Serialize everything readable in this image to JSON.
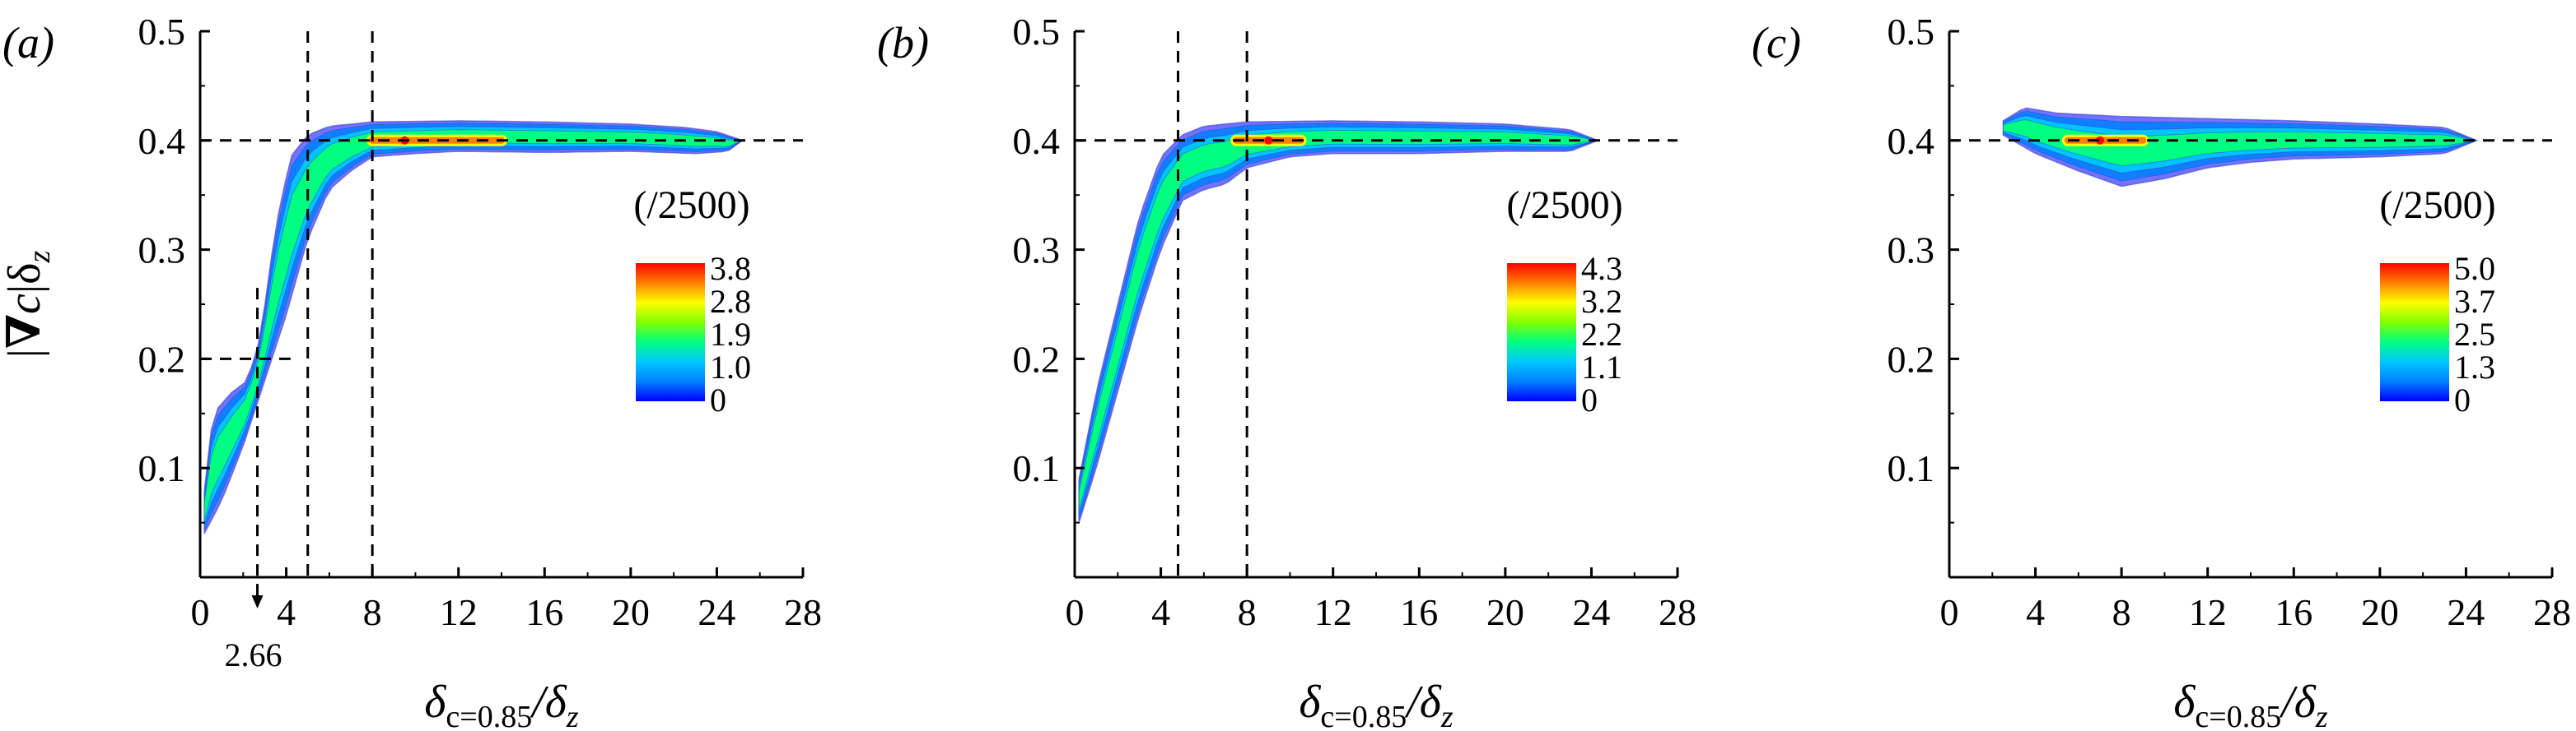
{
  "colors": {
    "colormap": [
      "#0000ff",
      "#0080ff",
      "#00c8ff",
      "#00ff80",
      "#80ff00",
      "#ffff00",
      "#ff8000",
      "#ff0000"
    ],
    "contour_line": "#3344cc",
    "axes": "#000000",
    "reference_lines": "#000000"
  },
  "chart_data": [
    {
      "type": "heatmap",
      "panel_label": "(a)",
      "ylabel": "|∇c|δz",
      "xlabel": "δc=0.85/δz",
      "xlim": [
        0,
        28
      ],
      "ylim": [
        0,
        0.5
      ],
      "x_ticks": [
        "0",
        "4",
        "8",
        "12",
        "16",
        "20",
        "24",
        "28"
      ],
      "y_ticks": [
        "0.1",
        "0.2",
        "0.3",
        "0.4",
        "0.5"
      ],
      "colorbar": {
        "title": "(/2500)",
        "ticks": [
          "3.8",
          "2.8",
          "1.9",
          "1.0",
          "0"
        ],
        "max": 3.8
      },
      "reference_lines": {
        "horizontal": [
          0.4,
          0.2
        ],
        "vertical": [
          2.66,
          5.0,
          8.0
        ]
      },
      "annotation": {
        "text": "2.66",
        "x": 2.66
      },
      "band": {
        "upper": [
          [
            0.2,
            0.08
          ],
          [
            0.6,
            0.15
          ],
          [
            1.5,
            0.17
          ],
          [
            2.2,
            0.18
          ],
          [
            2.8,
            0.22
          ],
          [
            3.5,
            0.32
          ],
          [
            4.2,
            0.385
          ],
          [
            5.0,
            0.405
          ],
          [
            6.0,
            0.413
          ],
          [
            8.0,
            0.417
          ],
          [
            12.0,
            0.418
          ],
          [
            16.0,
            0.417
          ],
          [
            20.0,
            0.415
          ],
          [
            22.5,
            0.412
          ],
          [
            24.0,
            0.408
          ],
          [
            25.2,
            0.4
          ]
        ],
        "lower": [
          [
            0.2,
            0.04
          ],
          [
            1.0,
            0.07
          ],
          [
            2.0,
            0.12
          ],
          [
            3.0,
            0.18
          ],
          [
            4.0,
            0.24
          ],
          [
            5.0,
            0.31
          ],
          [
            6.0,
            0.355
          ],
          [
            7.0,
            0.372
          ],
          [
            8.0,
            0.385
          ],
          [
            10.0,
            0.388
          ],
          [
            12.0,
            0.39
          ],
          [
            16.0,
            0.389
          ],
          [
            20.0,
            0.39
          ],
          [
            23.0,
            0.388
          ],
          [
            24.5,
            0.39
          ],
          [
            25.2,
            0.4
          ]
        ],
        "peak": [
          [
            8.0,
            0.4
          ],
          [
            9.5,
            0.4
          ],
          [
            12.0,
            0.4
          ],
          [
            14.0,
            0.4
          ]
        ]
      }
    },
    {
      "type": "heatmap",
      "panel_label": "(b)",
      "xlabel": "δc=0.85/δz",
      "xlim": [
        0,
        28
      ],
      "ylim": [
        0,
        0.5
      ],
      "x_ticks": [
        "0",
        "4",
        "8",
        "12",
        "16",
        "20",
        "24",
        "28"
      ],
      "y_ticks": [
        "0.1",
        "0.2",
        "0.3",
        "0.4",
        "0.5"
      ],
      "colorbar": {
        "title": "(/2500)",
        "ticks": [
          "4.3",
          "3.2",
          "2.2",
          "1.1",
          "0"
        ],
        "max": 4.3
      },
      "reference_lines": {
        "horizontal": [
          0.4
        ],
        "vertical": [
          4.8,
          8.0
        ]
      },
      "band": {
        "upper": [
          [
            0.2,
            0.09
          ],
          [
            1.0,
            0.17
          ],
          [
            2.0,
            0.25
          ],
          [
            3.0,
            0.33
          ],
          [
            4.0,
            0.385
          ],
          [
            5.0,
            0.405
          ],
          [
            6.0,
            0.413
          ],
          [
            8.0,
            0.417
          ],
          [
            12.0,
            0.418
          ],
          [
            16.0,
            0.417
          ],
          [
            20.0,
            0.415
          ],
          [
            23.0,
            0.41
          ],
          [
            24.3,
            0.4
          ]
        ],
        "lower": [
          [
            0.2,
            0.05
          ],
          [
            1.0,
            0.1
          ],
          [
            2.0,
            0.17
          ],
          [
            3.0,
            0.24
          ],
          [
            4.0,
            0.3
          ],
          [
            5.0,
            0.345
          ],
          [
            6.0,
            0.355
          ],
          [
            7.0,
            0.36
          ],
          [
            8.0,
            0.375
          ],
          [
            10.0,
            0.385
          ],
          [
            12.0,
            0.388
          ],
          [
            16.0,
            0.388
          ],
          [
            20.0,
            0.39
          ],
          [
            23.0,
            0.39
          ],
          [
            24.3,
            0.4
          ]
        ],
        "peak": [
          [
            7.5,
            0.4
          ],
          [
            9.0,
            0.4
          ],
          [
            10.5,
            0.4
          ]
        ]
      }
    },
    {
      "type": "heatmap",
      "panel_label": "(c)",
      "xlabel": "δc=0.85/δz",
      "xlim": [
        0,
        28
      ],
      "ylim": [
        0,
        0.5
      ],
      "x_ticks": [
        "0",
        "4",
        "8",
        "12",
        "16",
        "20",
        "24",
        "28"
      ],
      "y_ticks": [
        "0.1",
        "0.2",
        "0.3",
        "0.4",
        "0.5"
      ],
      "colorbar": {
        "title": "(/2500)",
        "ticks": [
          "5.0",
          "3.7",
          "2.5",
          "1.3",
          "0"
        ],
        "max": 5.0
      },
      "reference_lines": {
        "horizontal": [
          0.4
        ],
        "vertical": []
      },
      "band": {
        "upper": [
          [
            2.5,
            0.418
          ],
          [
            3.5,
            0.43
          ],
          [
            5.0,
            0.425
          ],
          [
            8.0,
            0.422
          ],
          [
            12.0,
            0.42
          ],
          [
            16.0,
            0.418
          ],
          [
            20.0,
            0.415
          ],
          [
            23.0,
            0.412
          ],
          [
            24.5,
            0.4
          ]
        ],
        "lower": [
          [
            2.5,
            0.405
          ],
          [
            4.0,
            0.388
          ],
          [
            6.0,
            0.372
          ],
          [
            8.0,
            0.358
          ],
          [
            10.0,
            0.365
          ],
          [
            12.0,
            0.375
          ],
          [
            14.0,
            0.38
          ],
          [
            16.0,
            0.383
          ],
          [
            20.0,
            0.385
          ],
          [
            23.0,
            0.388
          ],
          [
            24.5,
            0.4
          ]
        ],
        "peak": [
          [
            5.5,
            0.4
          ],
          [
            7.0,
            0.4
          ],
          [
            9.0,
            0.4
          ]
        ]
      }
    }
  ]
}
